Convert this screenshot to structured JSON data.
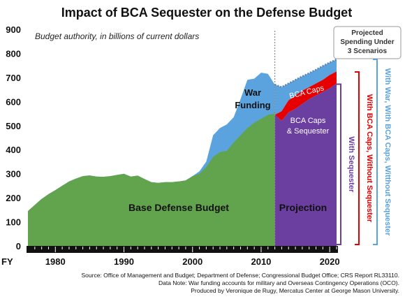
{
  "chart_data": {
    "type": "area",
    "title": "Impact of BCA Sequester on the Defense Budget",
    "subtitle": "Budget authority, in billions of current dollars",
    "x_prefix": "FY",
    "x_ticks": [
      1980,
      1990,
      2000,
      2010,
      2020
    ],
    "y_ticks": [
      0,
      100,
      200,
      300,
      400,
      500,
      600,
      700,
      800,
      900
    ],
    "xlim": [
      1976,
      2021
    ],
    "ylim": [
      0,
      900
    ],
    "projection_start": 2012,
    "series": [
      {
        "key": "base",
        "label": "Base Defense Budget",
        "color": "#62a34e",
        "x": [
          1976,
          1977,
          1978,
          1979,
          1980,
          1981,
          1982,
          1983,
          1984,
          1985,
          1986,
          1987,
          1988,
          1989,
          1990,
          1991,
          1992,
          1993,
          1994,
          1995,
          1996,
          1997,
          1998,
          1999,
          2000,
          2001,
          2002,
          2003,
          2004,
          2005,
          2006,
          2007,
          2008,
          2009,
          2010,
          2011,
          2012
        ],
        "y": [
          145,
          170,
          195,
          215,
          232,
          250,
          268,
          280,
          290,
          293,
          288,
          287,
          290,
          295,
          300,
          288,
          292,
          278,
          265,
          262,
          265,
          265,
          268,
          272,
          290,
          300,
          328,
          370,
          390,
          395,
          430,
          460,
          490,
          512,
          528,
          545,
          550
        ]
      },
      {
        "key": "total",
        "label": "War Funding",
        "color": "#5ba3de",
        "x": [
          1976,
          1977,
          1978,
          1979,
          1980,
          1981,
          1982,
          1983,
          1984,
          1985,
          1986,
          1987,
          1988,
          1989,
          1990,
          1991,
          1992,
          1993,
          1994,
          1995,
          1996,
          1997,
          1998,
          1999,
          2000,
          2001,
          2002,
          2003,
          2004,
          2005,
          2006,
          2007,
          2008,
          2009,
          2010,
          2011,
          2012
        ],
        "y": [
          145,
          170,
          195,
          215,
          232,
          250,
          268,
          280,
          290,
          293,
          288,
          287,
          290,
          295,
          300,
          288,
          292,
          278,
          265,
          262,
          265,
          265,
          268,
          272,
          290,
          310,
          350,
          460,
          490,
          505,
          535,
          610,
          690,
          695,
          720,
          715,
          670
        ]
      },
      {
        "key": "without_sequester",
        "label": "With War, With BCA Caps, Witthout Sequester",
        "color": "#5b84b5",
        "x": [
          2012,
          2013,
          2014,
          2015,
          2016,
          2017,
          2018,
          2019,
          2020,
          2021
        ],
        "y": [
          670,
          660,
          675,
          690,
          705,
          718,
          732,
          748,
          762,
          775
        ]
      },
      {
        "key": "bca_caps",
        "label": "BCA Caps",
        "color": "#e60000",
        "x": [
          2012,
          2013,
          2014,
          2015,
          2016,
          2017,
          2018,
          2019,
          2020,
          2021
        ],
        "y": [
          545,
          560,
          605,
          625,
          645,
          660,
          675,
          690,
          710,
          725
        ]
      },
      {
        "key": "sequester",
        "label": "BCA Caps & Sequester",
        "color": "#6a3fa0",
        "x": [
          2012,
          2013,
          2014,
          2015,
          2016,
          2017,
          2018,
          2019,
          2020,
          2021
        ],
        "y": [
          545,
          520,
          555,
          570,
          590,
          610,
          625,
          640,
          655,
          675
        ]
      }
    ],
    "annotations": {
      "war_funding_1": "War",
      "war_funding_2": "Funding",
      "bca_caps": "BCA Caps",
      "sequester_1": "BCA Caps",
      "sequester_2": "& Sequester",
      "base": "Base Defense Budget",
      "projection": "Projection",
      "callout_1": "Projected",
      "callout_2": "Spending Under",
      "callout_3": "3 Scenarios"
    },
    "scenario_labels": {
      "with_sequester": "With Sequester",
      "bca_no_sequester": "With BCA Caps, Without  Sequester",
      "war_bca_no_sequester": "With War, With BCA Caps, Witthout Sequester"
    }
  },
  "footer": {
    "line1": "Source: Office of Management and Budget; Department of Defense; Congressional Budget Office; CRS Report RL33110.",
    "line2": "Data Note: War funding accounts for military and Overseas Contingency Operations (OCO).",
    "line3": "Produced by Veronique de Rugy, Mercatus Center at George Mason University."
  }
}
